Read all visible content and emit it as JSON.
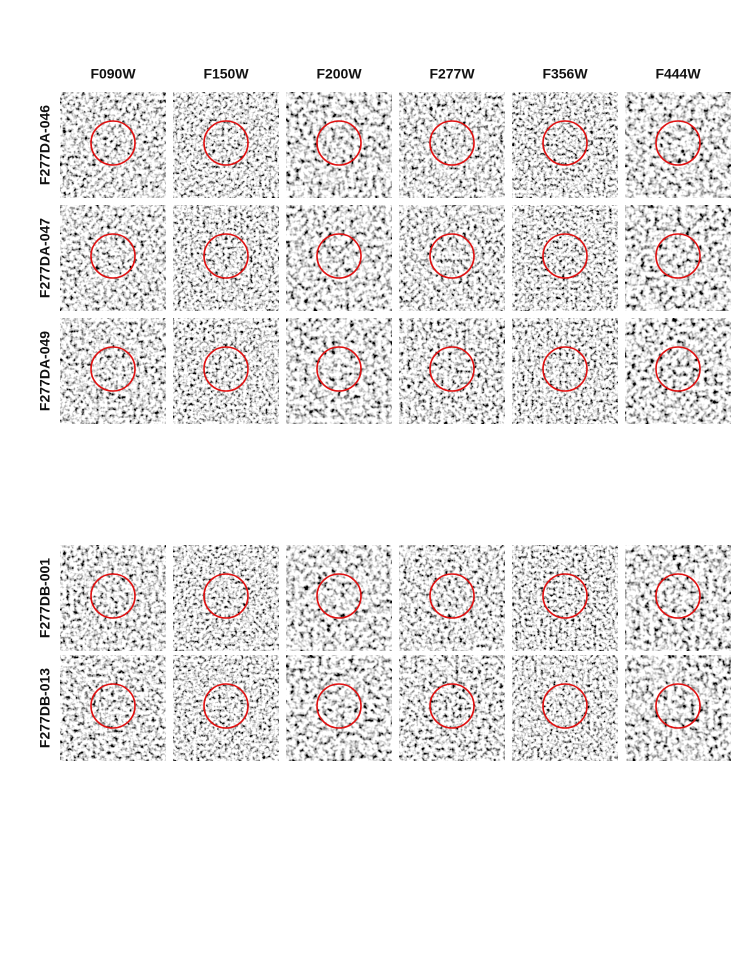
{
  "columns": [
    "F090W",
    "F150W",
    "F200W",
    "F277W",
    "F356W",
    "F444W"
  ],
  "rows": [
    "F277DA-046",
    "F277DA-047",
    "F277DA-049",
    "F277DB-001",
    "F277DB-013"
  ]
}
